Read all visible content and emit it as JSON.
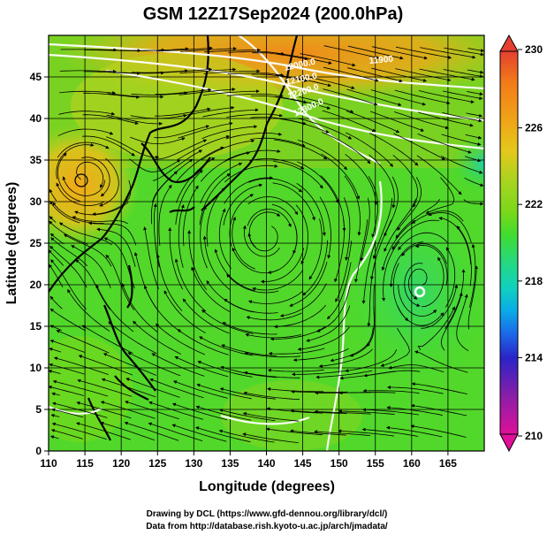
{
  "title": "GSM 12Z17Sep2024 (200.0hPa)",
  "xlabel": "Longitude (degrees)",
  "ylabel": "Latitude  (degrees)",
  "colorbar": {
    "ticks": [
      "230",
      "226",
      "222",
      "218",
      "214",
      "210"
    ],
    "min": 210,
    "max": 230,
    "colors": [
      "#e0109a",
      "#8a1ea8",
      "#2a24c8",
      "#1c66e8",
      "#0aa9e8",
      "#10d0c0",
      "#22d88a",
      "#40dc30",
      "#7ad81a",
      "#a8d420",
      "#e4c81a",
      "#f0a418",
      "#f27a1a",
      "#e44030"
    ]
  },
  "contour_labels": [
    "12100.0",
    "12000.0",
    "12200.0",
    "12300.0",
    "11900"
  ],
  "credits": {
    "line1": "Drawing by DCL (https://www.gfd-dennou.org/library/dcl/)",
    "line2": "Data from http://database.rish.kyoto-u.ac.jp/arch/jmadata/"
  },
  "chart_data": {
    "type": "map",
    "title": "GSM 12Z17Sep2024 (200.0hPa)",
    "xlabel": "Longitude (degrees)",
    "ylabel": "Latitude  (degrees)",
    "xlim": [
      110,
      170
    ],
    "ylim": [
      0,
      50
    ],
    "xticks": [
      "110",
      "115",
      "120",
      "125",
      "130",
      "135",
      "140",
      "145",
      "150",
      "155",
      "160",
      "165"
    ],
    "yticks": [
      "0",
      "5",
      "10",
      "15",
      "20",
      "25",
      "30",
      "35",
      "40",
      "45"
    ],
    "grid": true,
    "field": "temperature (color) + streamlines",
    "colorbar_range": [
      210,
      230
    ],
    "contours": [
      {
        "label": "11900",
        "lon": 154.5,
        "lat": 47.2
      },
      {
        "label": "12000.0",
        "lon": 141.5,
        "lat": 46.5
      },
      {
        "label": "12100.0",
        "lon": 142.5,
        "lat": 45.3
      },
      {
        "label": "12200.0",
        "lon": 143,
        "lat": 44.0
      },
      {
        "label": "12300.0",
        "lon": 145,
        "lat": 42.0
      }
    ],
    "warm_center": {
      "lon": 114.5,
      "lat": 34.5
    },
    "vortex_center": {
      "lon": 160.3,
      "lat": 20.6
    }
  }
}
